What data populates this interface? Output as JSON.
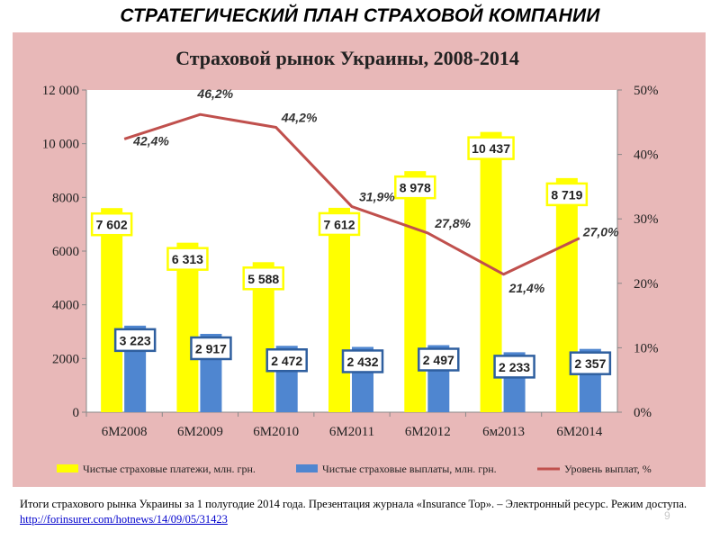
{
  "slide": {
    "heading": "СТРАТЕГИЧЕСКИЙ ПЛАН СТРАХОВОЙ КОМПАНИИ",
    "caption_text": "Итоги страхового рынка Украины за 1 полугодие 2014 года. Презентация журнала «Insurance Top». – Электронный ресурс. Режим доступа. ",
    "caption_link": "http://forinsurer.com/hotnews/14/09/05/31423",
    "slide_number": "9"
  },
  "colors": {
    "background": "#e8b8b8",
    "plot_area": "#ffffff",
    "premiums": "#ffff00",
    "payouts": "#4f86d0",
    "level_line": "#c0504d"
  },
  "chart_data": {
    "type": "bar",
    "title": "Страховой рынок Украины, 2008-2014",
    "categories": [
      "6M2008",
      "6M2009",
      "6M2010",
      "6M2011",
      "6M2012",
      "6м2013",
      "6M2014"
    ],
    "series": [
      {
        "name": "Чистые страховые платежи, млн. грн.",
        "type": "bar",
        "axis": "left",
        "values": [
          7602,
          6313,
          5588,
          7612,
          8978,
          10437,
          8719
        ],
        "labels": [
          "7 602",
          "6 313",
          "5 588",
          "7 612",
          "8 978",
          "10 437",
          "8 719"
        ]
      },
      {
        "name": "Чистые страховые выплаты, млн. грн.",
        "type": "bar",
        "axis": "left",
        "values": [
          3223,
          2917,
          2472,
          2432,
          2497,
          2233,
          2357
        ],
        "labels": [
          "3 223",
          "2 917",
          "2 472",
          "2 432",
          "2 497",
          "2 233",
          "2 357"
        ]
      },
      {
        "name": "Уровень выплат, %",
        "type": "line",
        "axis": "right",
        "values": [
          42.4,
          46.2,
          44.2,
          31.9,
          27.8,
          21.4,
          27.0
        ],
        "labels": [
          "42,4%",
          "46,2%",
          "44,2%",
          "31,9%",
          "27,8%",
          "21,4%",
          "27,0%"
        ]
      }
    ],
    "y_left": {
      "min": 0,
      "max": 12000,
      "ticks": [
        0,
        2000,
        4000,
        6000,
        8000,
        10000,
        12000
      ],
      "tick_labels": [
        "0",
        "2000",
        "4000",
        "6000",
        "8000",
        "10 000",
        "12 000"
      ]
    },
    "y_right": {
      "min": 0,
      "max": 50,
      "ticks": [
        0,
        10,
        20,
        30,
        40,
        50
      ],
      "tick_labels": [
        "0%",
        "10%",
        "20%",
        "30%",
        "40%",
        "50%"
      ]
    },
    "grid": false,
    "legend_position": "bottom"
  }
}
